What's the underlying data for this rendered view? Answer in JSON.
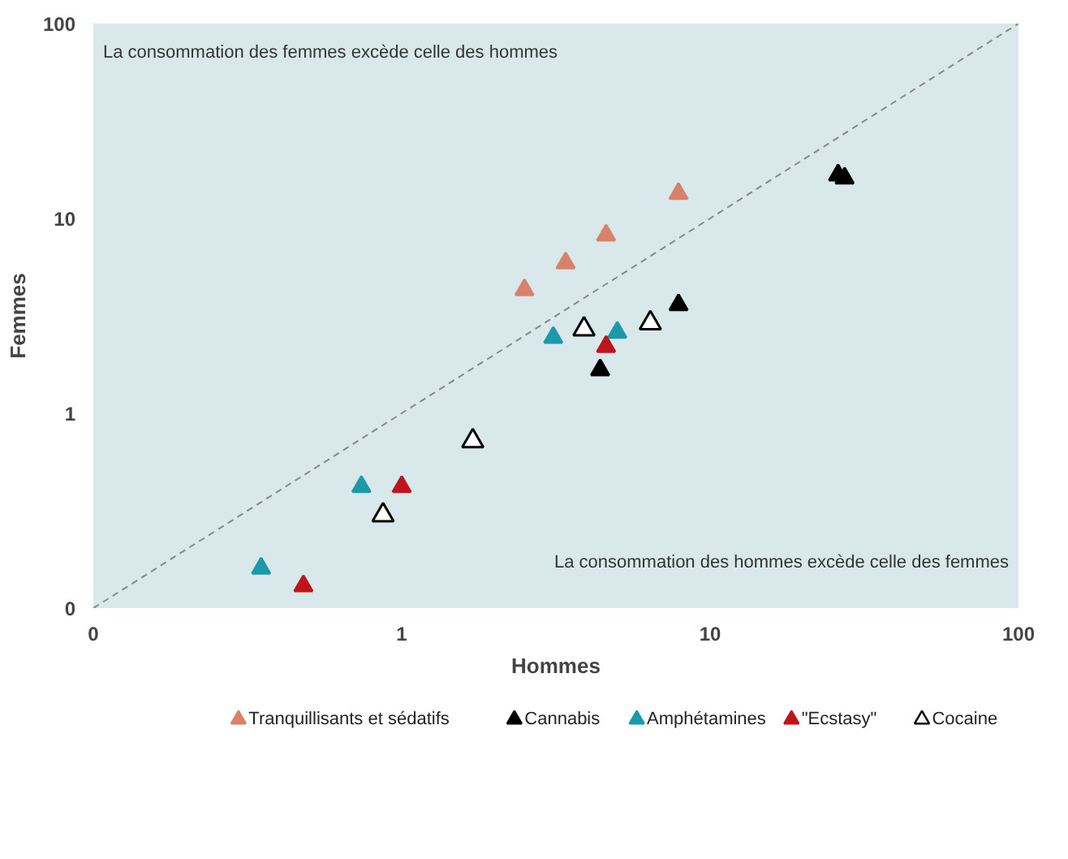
{
  "chart_data": {
    "type": "scatter",
    "xlabel": "Hommes",
    "ylabel": "Femmes",
    "log": "xy",
    "marker": "triangle",
    "grid": false,
    "legend": "bottom",
    "xlim": [
      0.1,
      100
    ],
    "ylim": [
      0.1,
      100
    ],
    "xticks": [
      {
        "value": 0.1,
        "label": "0"
      },
      1,
      10,
      100
    ],
    "yticks": [
      {
        "value": 0.1,
        "label": "0"
      },
      1,
      10,
      100
    ],
    "annotations": [
      "La consommation des femmes excède celle des hommes",
      "La consommation des hommes excède celle des femmes"
    ],
    "series": [
      {
        "name": "Tranquillisants et sédatifs",
        "color": "#d9826b",
        "x": [
          2.5,
          3.4,
          4.6,
          7.9
        ],
        "values": [
          4.3,
          5.9,
          8.2,
          13.4
        ]
      },
      {
        "name": "Cannabis",
        "color": "#000000",
        "x": [
          26,
          27.3,
          7.9,
          4.4
        ],
        "values": [
          16.7,
          16.1,
          3.6,
          1.67
        ]
      },
      {
        "name": "Amphétamines",
        "color": "#1a9aaa",
        "x": [
          3.1,
          5.0,
          0.74,
          0.35
        ],
        "values": [
          2.45,
          2.6,
          0.42,
          0.16
        ]
      },
      {
        "name": "\"Ecstasy\"",
        "color": "#c0141c",
        "x": [
          4.6,
          1.0,
          0.48
        ],
        "values": [
          2.2,
          0.42,
          0.13
        ]
      },
      {
        "name": "Cocaine",
        "color": "#ffffff",
        "x": [
          3.9,
          6.4,
          1.7,
          0.87
        ],
        "values": [
          2.7,
          2.9,
          0.72,
          0.3
        ]
      },
      {
        "type": "line",
        "marker": "none",
        "color": "#888888",
        "line_style": "dashed",
        "x": [
          0.1,
          100
        ],
        "values": [
          0.1,
          100
        ]
      }
    ]
  }
}
